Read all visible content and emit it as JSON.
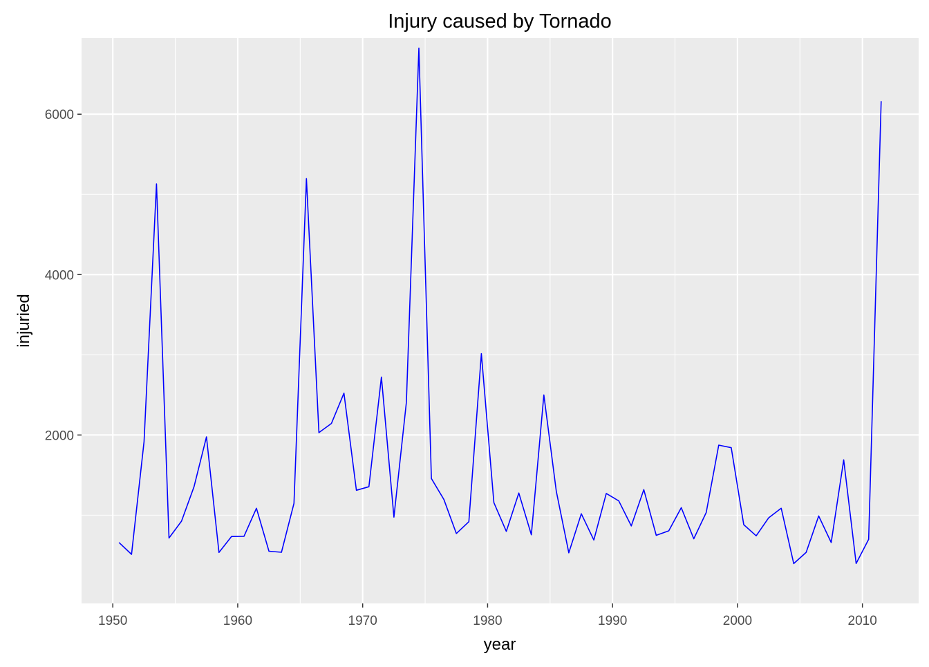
{
  "chart_data": {
    "type": "line",
    "title": "Injury caused by Tornado",
    "xlabel": "year",
    "ylabel": "injuried",
    "xlim": [
      1947.5,
      2014.5
    ],
    "ylim": [
      -100,
      6950
    ],
    "x_ticks": [
      1950,
      1960,
      1970,
      1980,
      1990,
      2000,
      2010
    ],
    "y_ticks": [
      2000,
      4000,
      6000
    ],
    "x_tick_labels": [
      "1950",
      "1960",
      "1970",
      "1980",
      "1990",
      "2000",
      "2010"
    ],
    "y_tick_labels": [
      "2000",
      "4000",
      "6000"
    ],
    "grid": true,
    "legend": "none",
    "colors": {
      "panel_background": "#ebebeb",
      "grid": "#ffffff",
      "line": "#0000ff"
    },
    "series": [
      {
        "x": [
          1950,
          1951,
          1952,
          1953,
          1954,
          1955,
          1956,
          1957,
          1958,
          1959,
          1960,
          1961,
          1962,
          1963,
          1964,
          1965,
          1966,
          1967,
          1968,
          1969,
          1970,
          1971,
          1972,
          1973,
          1974,
          1975,
          1976,
          1977,
          1978,
          1979,
          1980,
          1981,
          1982,
          1983,
          1984,
          1985,
          1986,
          1987,
          1988,
          1989,
          1990,
          1991,
          1992,
          1993,
          1994,
          1995,
          1996,
          1997,
          1998,
          1999,
          2000,
          2001,
          2002,
          2003,
          2004,
          2005,
          2006,
          2007,
          2008,
          2009,
          2010,
          2011
        ],
        "values": [
          659,
          512,
          1917,
          5131,
          715,
          926,
          1355,
          1976,
          535,
          734,
          737,
          1087,
          551,
          538,
          1148,
          5197,
          2030,
          2144,
          2522,
          1311,
          1355,
          2723,
          976,
          2406,
          6824,
          1457,
          1195,
          771,
          919,
          3014,
          1157,
          798,
          1276,
          756,
          2499,
          1299,
          531,
          1018,
          690,
          1271,
          1178,
          866,
          1319,
          749,
          805,
          1094,
          706,
          1033,
          1874,
          1842,
          882,
          743,
          968,
          1087,
          396,
          537,
          990,
          659,
          1690,
          397,
          699,
          6163
        ]
      }
    ]
  }
}
